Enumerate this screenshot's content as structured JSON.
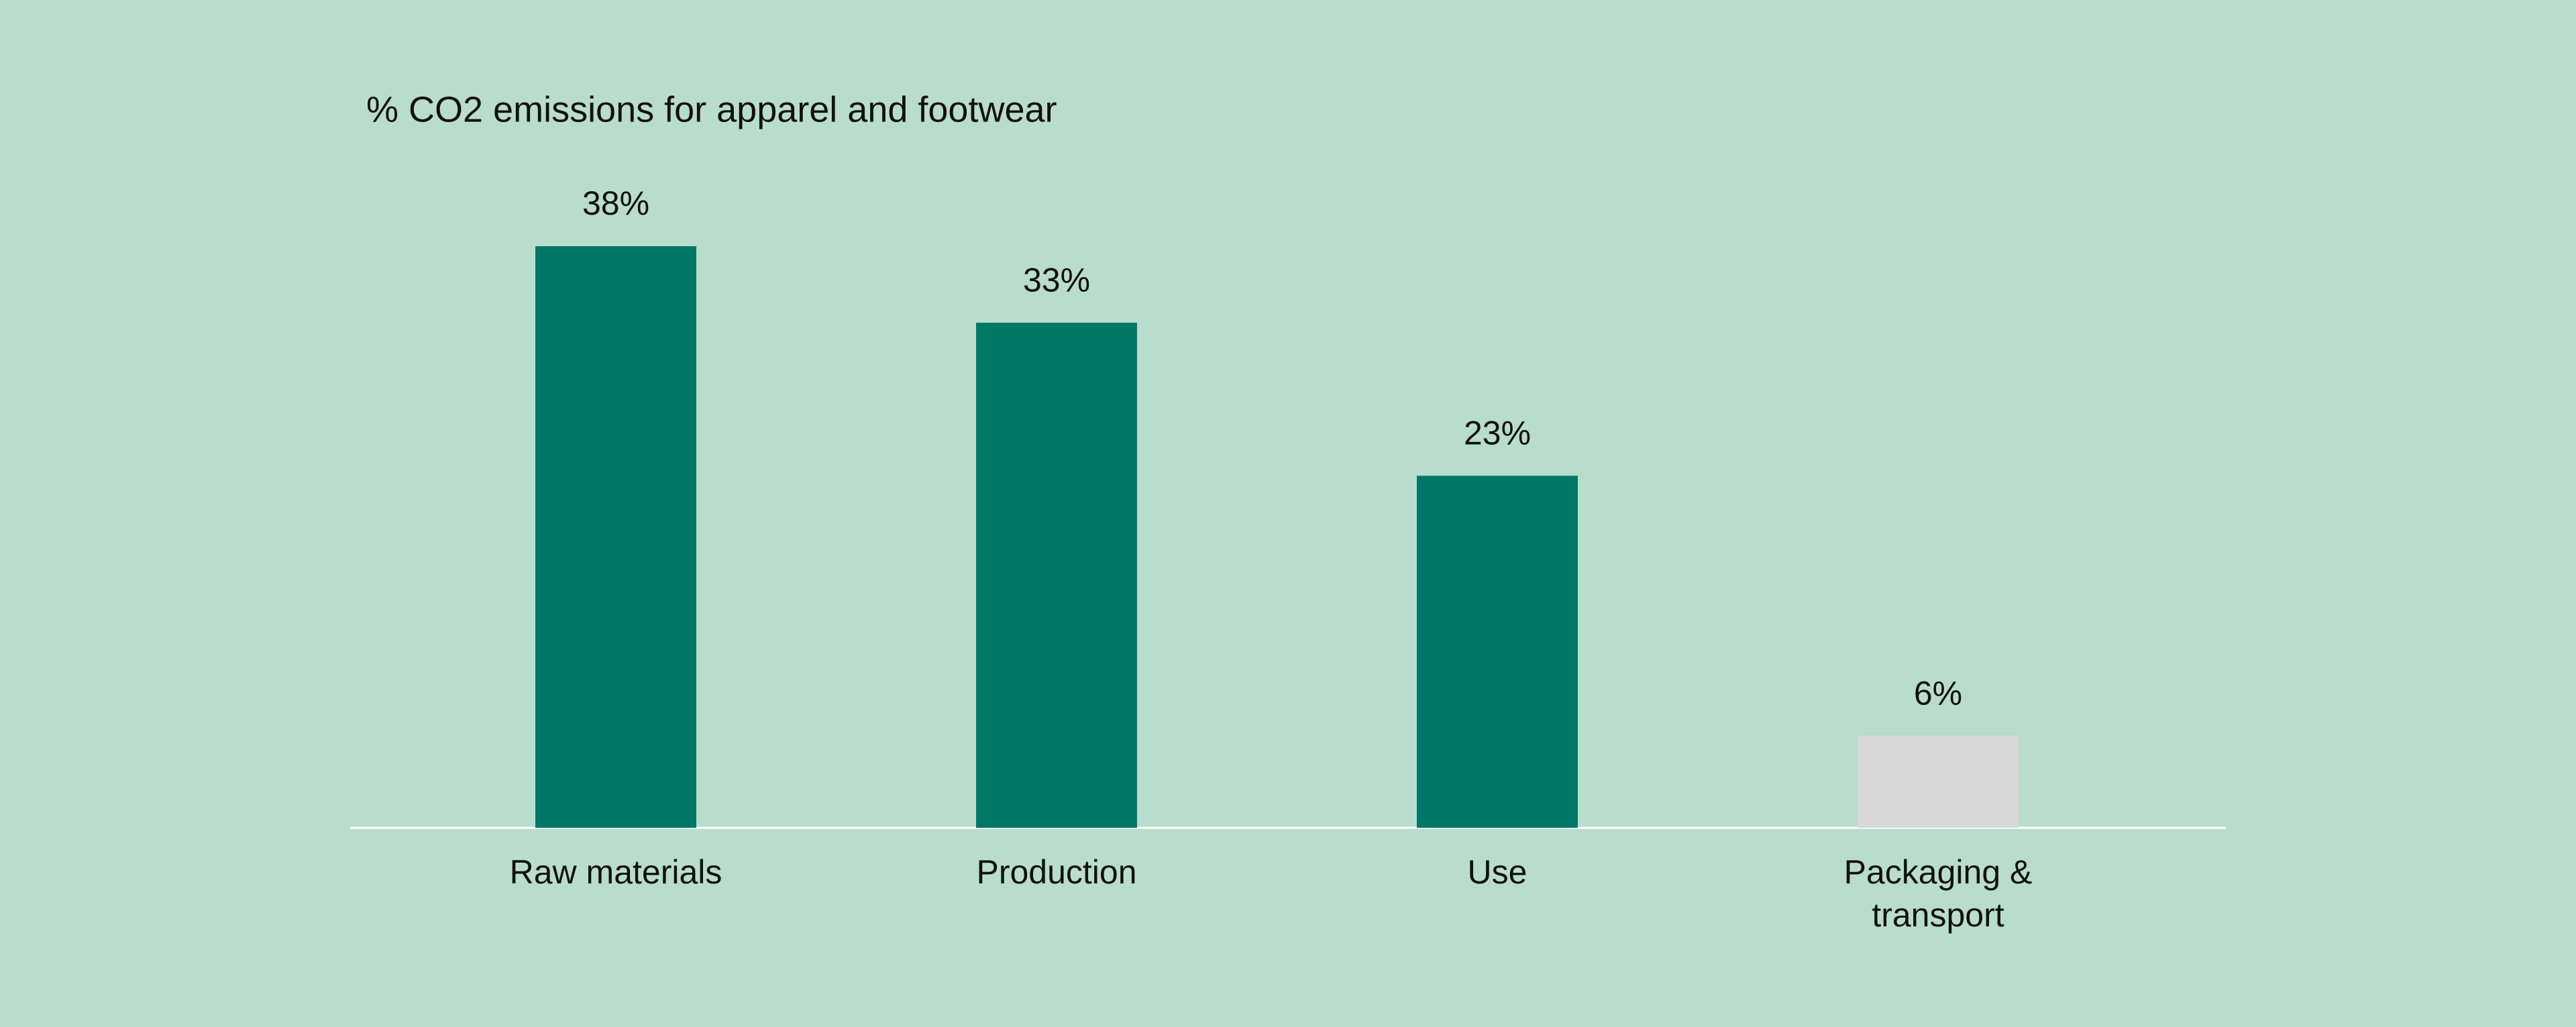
{
  "chart_data": {
    "type": "bar",
    "title": "% CO2 emissions for apparel and footwear",
    "categories": [
      "Raw materials",
      "Production",
      "Use",
      "Packaging & transport"
    ],
    "values": [
      38,
      33,
      23,
      6
    ],
    "value_labels": [
      "38%",
      "33%",
      "23%",
      "6%"
    ],
    "colors": [
      "#007868",
      "#007868",
      "#007868",
      "#d9d9d9"
    ],
    "ylim": [
      0,
      38
    ]
  }
}
